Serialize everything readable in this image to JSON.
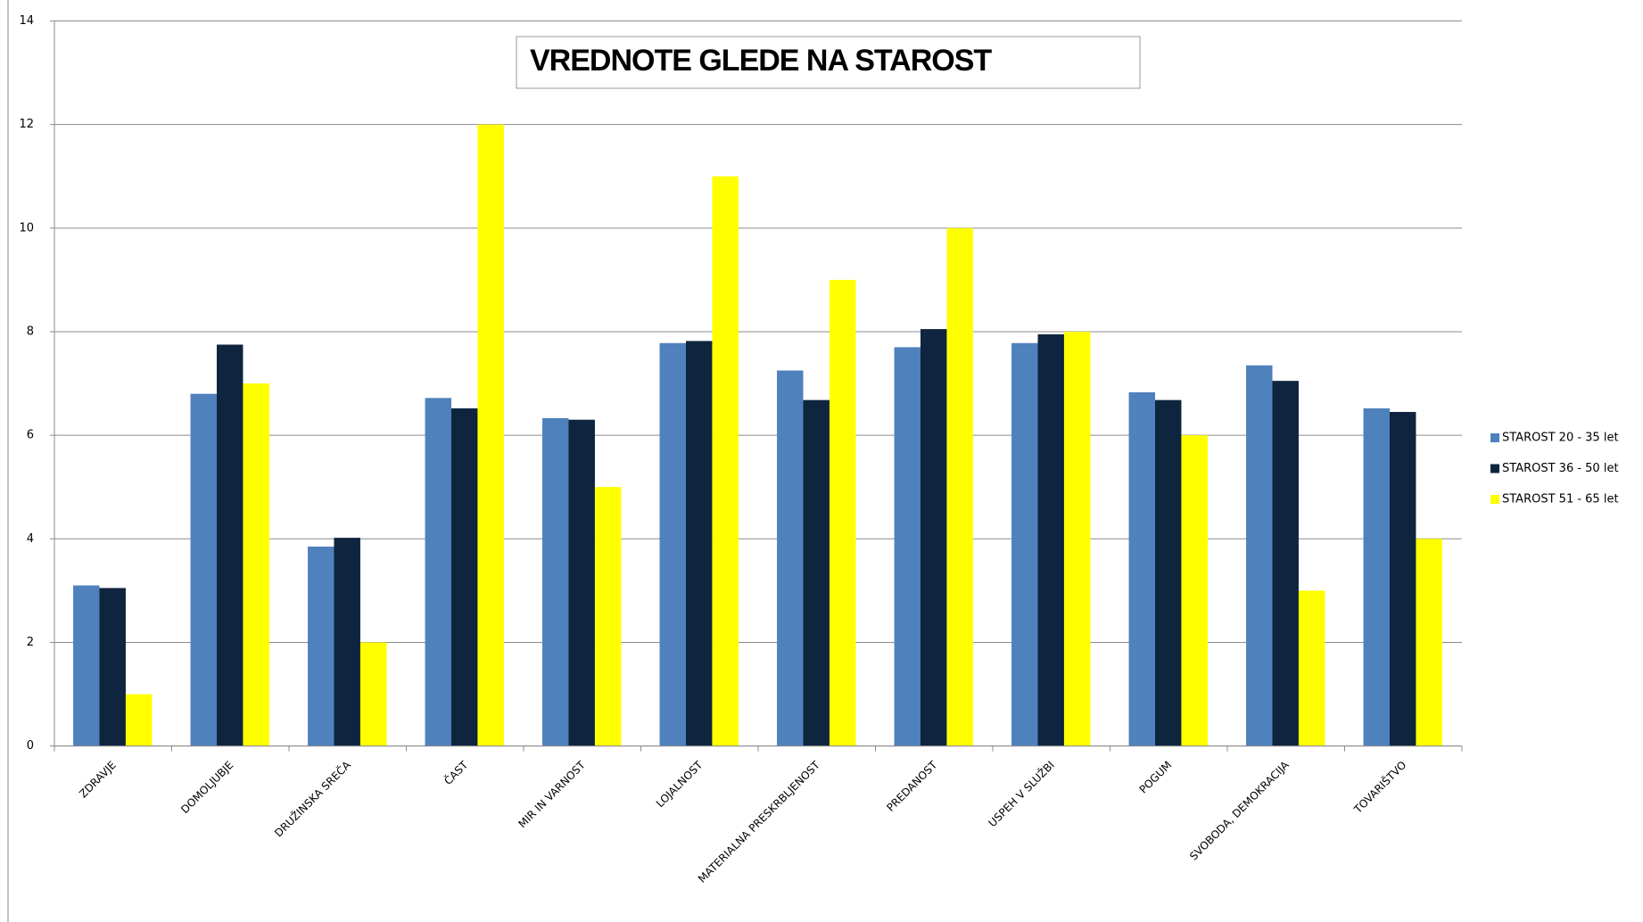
{
  "chart_data": {
    "type": "bar",
    "title": "VREDNOTE GLEDE NA STAROST",
    "categories": [
      "ZDRAVJE",
      "DOMOLJUBJE",
      "DRUŽINSKA SREČA",
      "ČAST",
      "MIR IN VARNOST",
      "LOJALNOST",
      "MATERIALNA PRESKRBLJENOST",
      "PREDANOST",
      "USPEH V SLUŽBI",
      "POGUM",
      "SVOBODA, DEMOKRACIJA",
      "TOVARIŠTVO"
    ],
    "series": [
      {
        "name": "STAROST 20 - 35 let",
        "color": "#4f81bd",
        "values": [
          3.1,
          6.8,
          3.85,
          6.72,
          6.33,
          7.78,
          7.25,
          7.7,
          7.78,
          6.83,
          7.35,
          6.52
        ]
      },
      {
        "name": "STAROST 36 - 50 let",
        "color": "#0f243e",
        "values": [
          3.05,
          7.75,
          4.02,
          6.52,
          6.3,
          7.82,
          6.68,
          8.05,
          7.95,
          6.68,
          7.05,
          6.45
        ]
      },
      {
        "name": "STAROST 51 - 65 let",
        "color": "#ffff00",
        "values": [
          1,
          7,
          2,
          12,
          5,
          11,
          9,
          10,
          8,
          6,
          3,
          4
        ]
      }
    ],
    "ylim": [
      0,
      14
    ],
    "yticks": [
      0,
      2,
      4,
      6,
      8,
      10,
      12,
      14
    ],
    "grid": true,
    "legend": "right"
  }
}
